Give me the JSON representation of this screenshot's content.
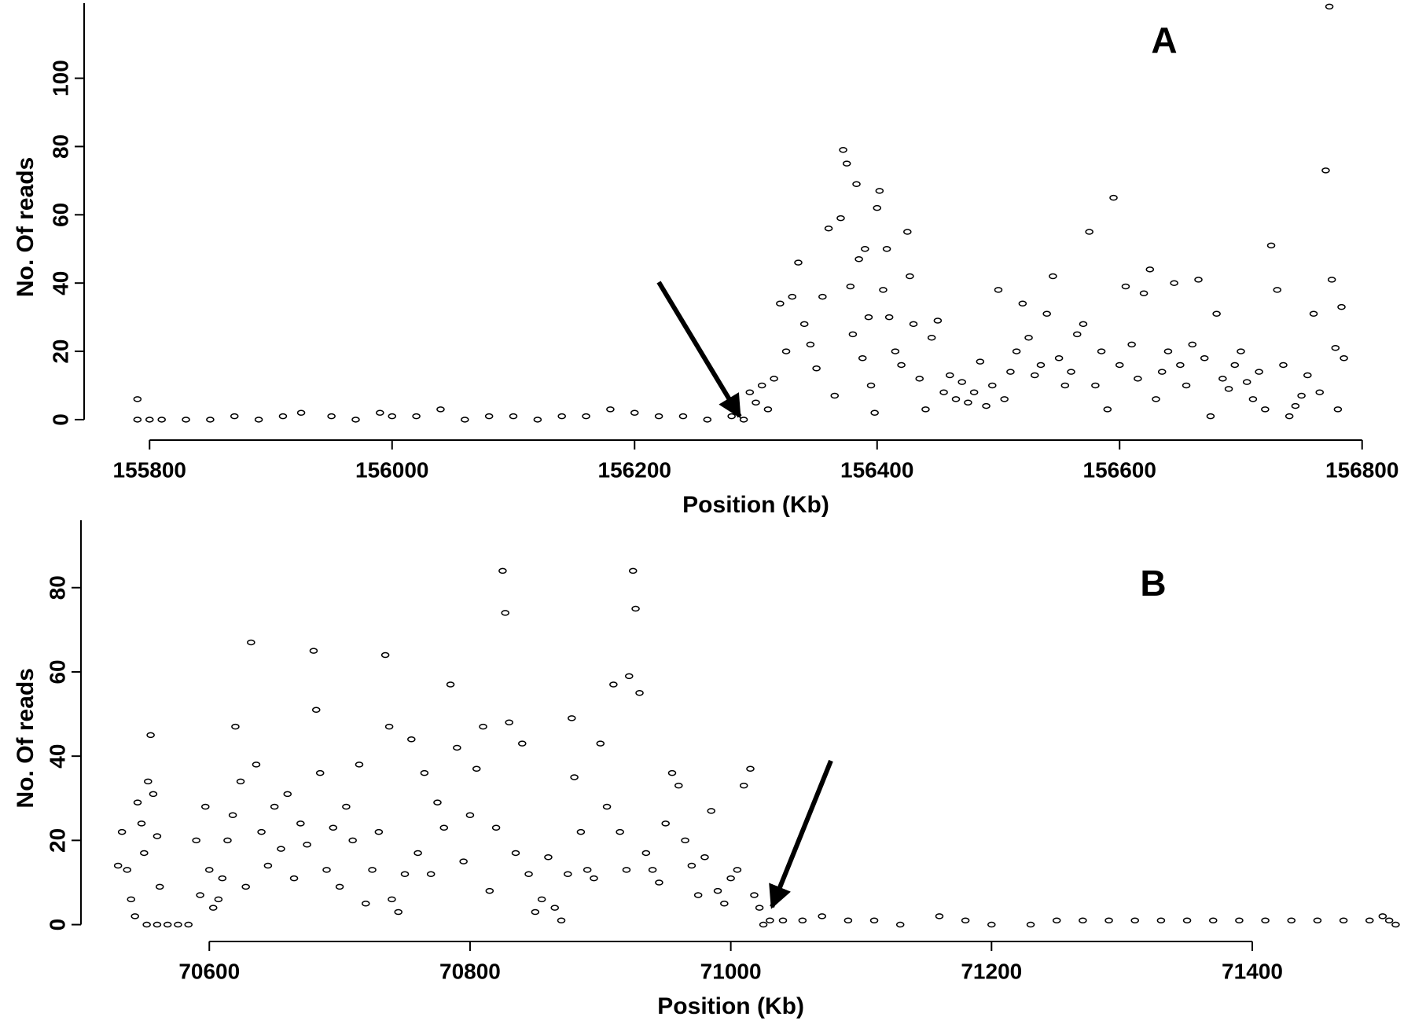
{
  "chart_data": [
    {
      "type": "scatter",
      "panel_label": "A",
      "xlabel": "Position (Kb)",
      "ylabel": "No. Of reads",
      "color": "#000000",
      "xlim": [
        155770,
        156830
      ],
      "ylim": [
        -6,
        122
      ],
      "xticks": [
        155800,
        156000,
        156200,
        156400,
        156600,
        156800
      ],
      "yticks": [
        0,
        20,
        40,
        60,
        80,
        100
      ],
      "x": [
        155790,
        155790,
        155800,
        155810,
        155830,
        155850,
        155870,
        155890,
        155910,
        155925,
        155950,
        155970,
        155990,
        156000,
        156020,
        156040,
        156060,
        156080,
        156100,
        156120,
        156140,
        156160,
        156180,
        156200,
        156220,
        156240,
        156260,
        156280,
        156290,
        156295,
        156300,
        156305,
        156310,
        156315,
        156320,
        156325,
        156330,
        156335,
        156340,
        156345,
        156350,
        156355,
        156360,
        156365,
        156370,
        156372,
        156375,
        156378,
        156380,
        156383,
        156385,
        156388,
        156390,
        156393,
        156395,
        156398,
        156400,
        156402,
        156405,
        156408,
        156410,
        156415,
        156420,
        156425,
        156427,
        156430,
        156435,
        156440,
        156445,
        156450,
        156455,
        156460,
        156465,
        156470,
        156475,
        156480,
        156485,
        156490,
        156495,
        156500,
        156505,
        156510,
        156515,
        156520,
        156525,
        156530,
        156535,
        156540,
        156545,
        156550,
        156555,
        156560,
        156565,
        156570,
        156575,
        156580,
        156585,
        156590,
        156595,
        156600,
        156605,
        156610,
        156615,
        156620,
        156625,
        156630,
        156635,
        156640,
        156645,
        156650,
        156655,
        156660,
        156665,
        156670,
        156675,
        156680,
        156685,
        156690,
        156695,
        156700,
        156705,
        156710,
        156715,
        156720,
        156725,
        156730,
        156735,
        156740,
        156745,
        156750,
        156755,
        156760,
        156765,
        156770,
        156773,
        156775,
        156778,
        156780,
        156783,
        156785
      ],
      "y": [
        6,
        0,
        0,
        0,
        0,
        0,
        1,
        0,
        1,
        2,
        1,
        0,
        2,
        1,
        1,
        3,
        0,
        1,
        1,
        0,
        1,
        1,
        3,
        2,
        1,
        1,
        0,
        1,
        0,
        8,
        5,
        10,
        3,
        12,
        34,
        20,
        36,
        46,
        28,
        22,
        15,
        36,
        56,
        7,
        59,
        79,
        75,
        39,
        25,
        69,
        47,
        18,
        50,
        30,
        10,
        2,
        62,
        67,
        38,
        50,
        30,
        20,
        16,
        55,
        42,
        28,
        12,
        3,
        24,
        29,
        8,
        13,
        6,
        11,
        5,
        8,
        17,
        4,
        10,
        38,
        6,
        14,
        20,
        34,
        24,
        13,
        16,
        31,
        42,
        18,
        10,
        14,
        25,
        28,
        55,
        10,
        20,
        3,
        65,
        16,
        39,
        22,
        12,
        37,
        44,
        6,
        14,
        20,
        40,
        16,
        10,
        22,
        41,
        18,
        1,
        31,
        12,
        9,
        16,
        20,
        11,
        6,
        14,
        3,
        51,
        38,
        16,
        1,
        4,
        7,
        13,
        31,
        8,
        73,
        121,
        41,
        21,
        3,
        33,
        18
      ]
    },
    {
      "type": "scatter",
      "panel_label": "B",
      "xlabel": "Position (Kb)",
      "ylabel": "No. Of reads",
      "color": "#000000",
      "xlim": [
        70510,
        71520
      ],
      "ylim": [
        -4,
        96
      ],
      "xticks": [
        70600,
        70800,
        71000,
        71200,
        71400
      ],
      "yticks": [
        0,
        20,
        40,
        60,
        80
      ],
      "x": [
        70530,
        70533,
        70537,
        70540,
        70543,
        70545,
        70548,
        70550,
        70553,
        70555,
        70557,
        70560,
        70562,
        70552,
        70560,
        70568,
        70576,
        70584,
        70590,
        70593,
        70597,
        70600,
        70603,
        70607,
        70610,
        70614,
        70618,
        70620,
        70624,
        70628,
        70632,
        70636,
        70640,
        70645,
        70650,
        70655,
        70660,
        70665,
        70670,
        70675,
        70680,
        70682,
        70685,
        70690,
        70695,
        70700,
        70705,
        70710,
        70715,
        70720,
        70725,
        70730,
        70735,
        70738,
        70740,
        70745,
        70750,
        70755,
        70760,
        70765,
        70770,
        70775,
        70780,
        70785,
        70790,
        70795,
        70800,
        70805,
        70810,
        70815,
        70820,
        70825,
        70827,
        70830,
        70835,
        70840,
        70845,
        70850,
        70855,
        70860,
        70865,
        70870,
        70875,
        70878,
        70880,
        70885,
        70890,
        70895,
        70900,
        70905,
        70910,
        70915,
        70920,
        70922,
        70925,
        70927,
        70930,
        70935,
        70940,
        70945,
        70950,
        70955,
        70960,
        70965,
        70970,
        70975,
        70980,
        70985,
        70990,
        70995,
        71000,
        71005,
        71010,
        71015,
        71018,
        71022,
        71025,
        71030,
        71040,
        71055,
        71070,
        71090,
        71110,
        71130,
        71160,
        71180,
        71200,
        71230,
        71250,
        71270,
        71290,
        71310,
        71330,
        71350,
        71370,
        71390,
        71410,
        71430,
        71450,
        71470,
        71490,
        71500,
        71505,
        71510
      ],
      "y": [
        14,
        22,
        13,
        6,
        2,
        29,
        24,
        17,
        34,
        45,
        31,
        21,
        9,
        0,
        0,
        0,
        0,
        0,
        20,
        7,
        28,
        13,
        4,
        6,
        11,
        20,
        26,
        47,
        34,
        9,
        67,
        38,
        22,
        14,
        28,
        18,
        31,
        11,
        24,
        19,
        65,
        51,
        36,
        13,
        23,
        9,
        28,
        20,
        38,
        5,
        13,
        22,
        64,
        47,
        6,
        3,
        12,
        44,
        17,
        36,
        12,
        29,
        23,
        57,
        42,
        15,
        26,
        37,
        47,
        8,
        23,
        84,
        74,
        48,
        17,
        43,
        12,
        3,
        6,
        16,
        4,
        1,
        12,
        49,
        35,
        22,
        13,
        11,
        43,
        28,
        57,
        22,
        13,
        59,
        84,
        75,
        55,
        17,
        13,
        10,
        24,
        36,
        33,
        20,
        14,
        7,
        16,
        27,
        8,
        5,
        11,
        13,
        33,
        37,
        7,
        4,
        0,
        1,
        1,
        1,
        2,
        1,
        1,
        0,
        2,
        1,
        0,
        0,
        1,
        1,
        1,
        1,
        1,
        1,
        1,
        1,
        1,
        1,
        1,
        1,
        1,
        2,
        1,
        0
      ]
    }
  ]
}
